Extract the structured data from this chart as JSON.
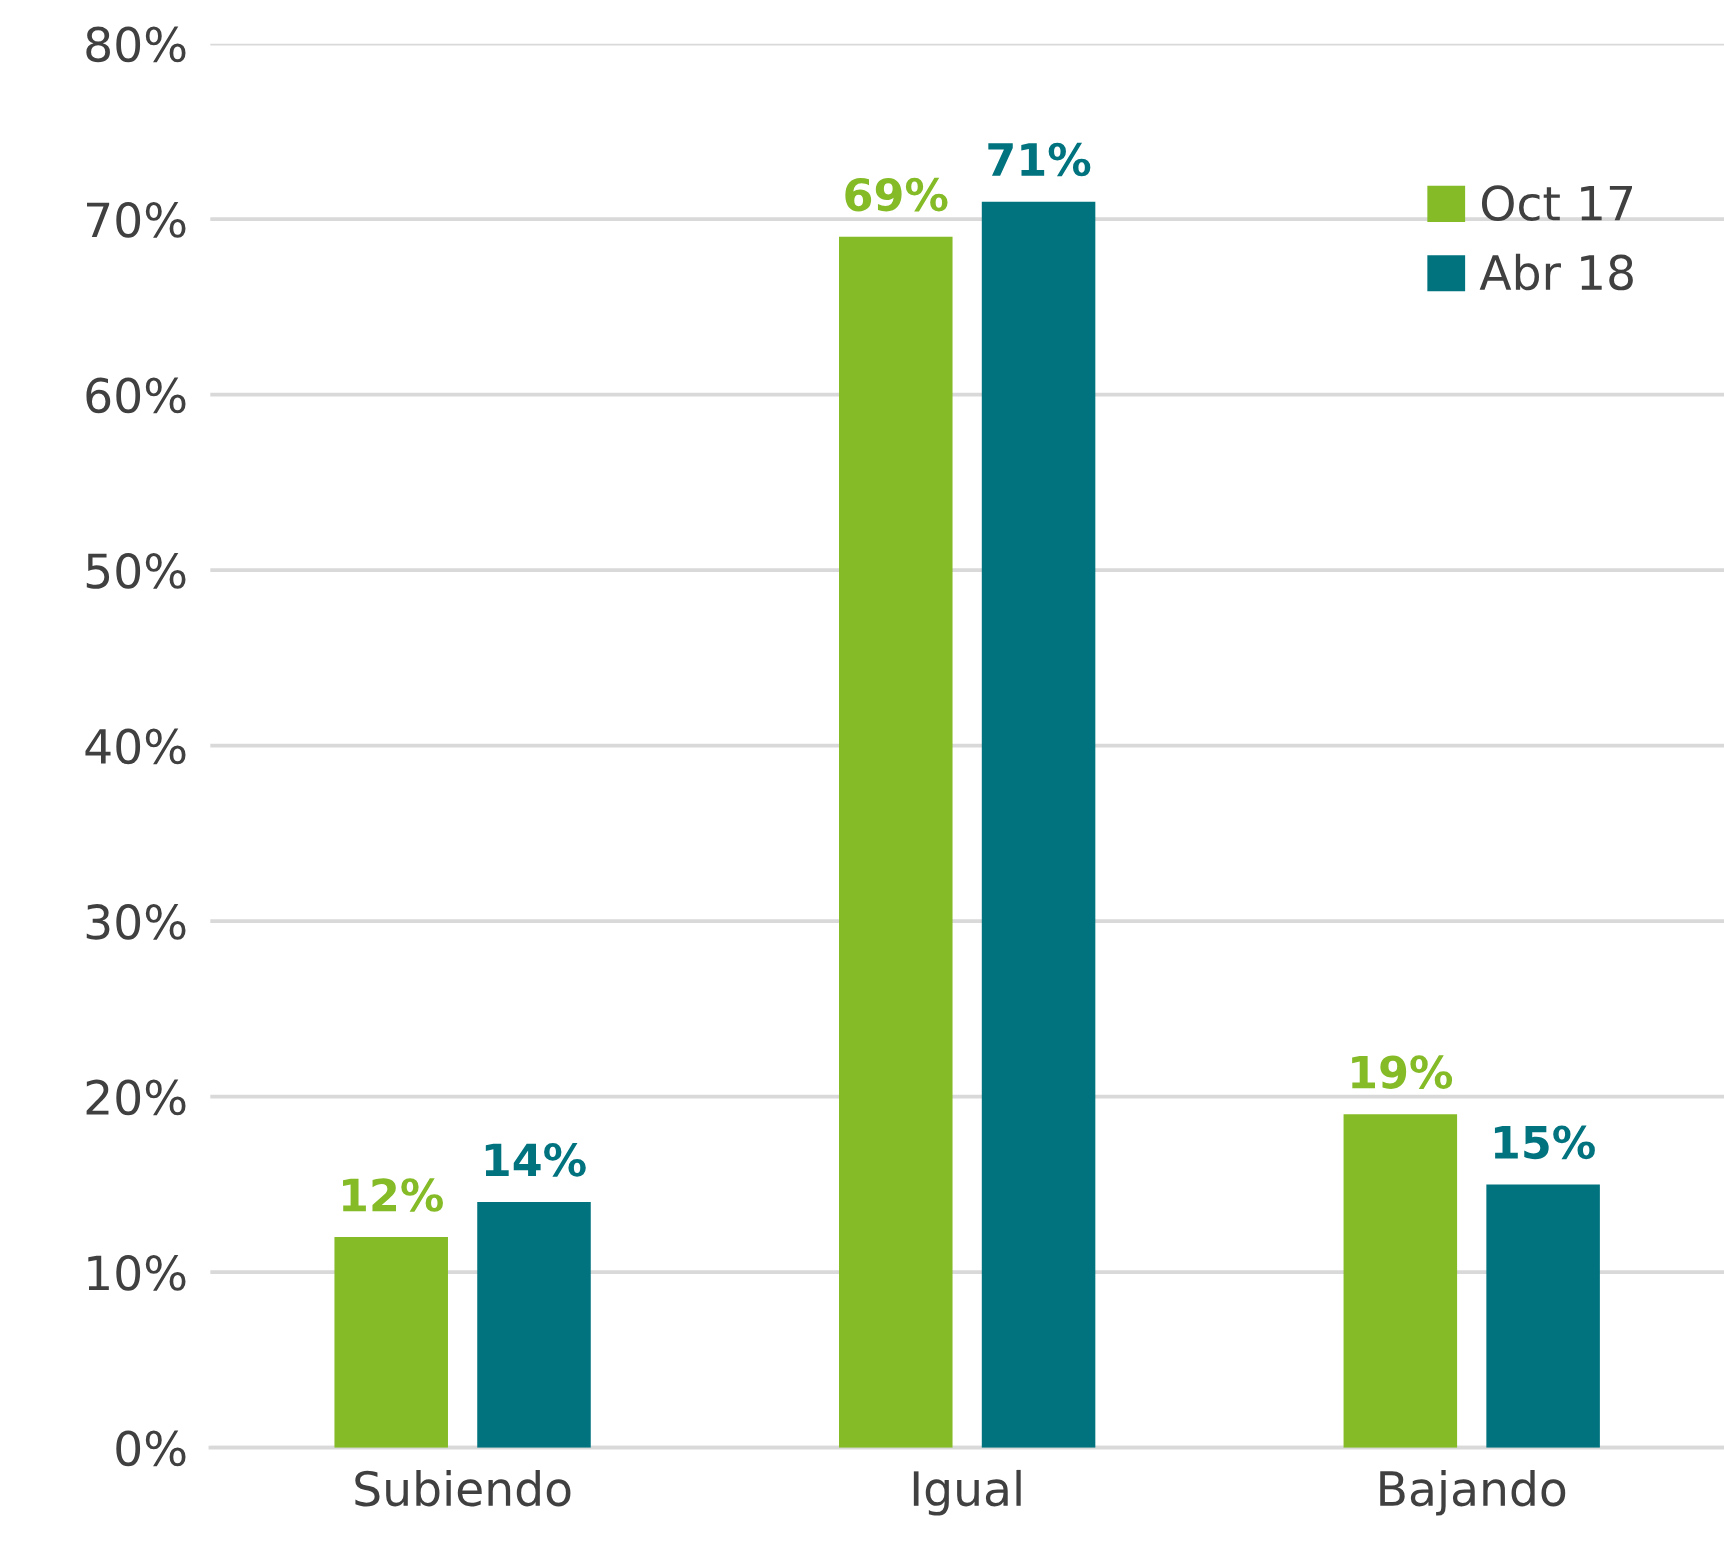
{
  "chart_data": {
    "type": "bar",
    "categories": [
      "Subiendo",
      "Igual",
      "Bajando"
    ],
    "series": [
      {
        "name": "Oct 17",
        "color": "#84bb26",
        "values": [
          12,
          69,
          19
        ],
        "value_labels": [
          "12%",
          "69%",
          "19%"
        ]
      },
      {
        "name": "Abr 18",
        "color": "#00737f",
        "values": [
          14,
          71,
          15
        ],
        "value_labels": [
          "14%",
          "71%",
          "15%"
        ]
      }
    ],
    "ylim": [
      0,
      80
    ],
    "yticks": [
      {
        "value": 0,
        "label": "0%"
      },
      {
        "value": 10,
        "label": "10%"
      },
      {
        "value": 20,
        "label": "20%"
      },
      {
        "value": 30,
        "label": "30%"
      },
      {
        "value": 40,
        "label": "40%"
      },
      {
        "value": 50,
        "label": "50%"
      },
      {
        "value": 60,
        "label": "60%"
      },
      {
        "value": 70,
        "label": "70%"
      },
      {
        "value": 80,
        "label": "80%"
      }
    ],
    "grid": "y",
    "legend": "top right"
  }
}
